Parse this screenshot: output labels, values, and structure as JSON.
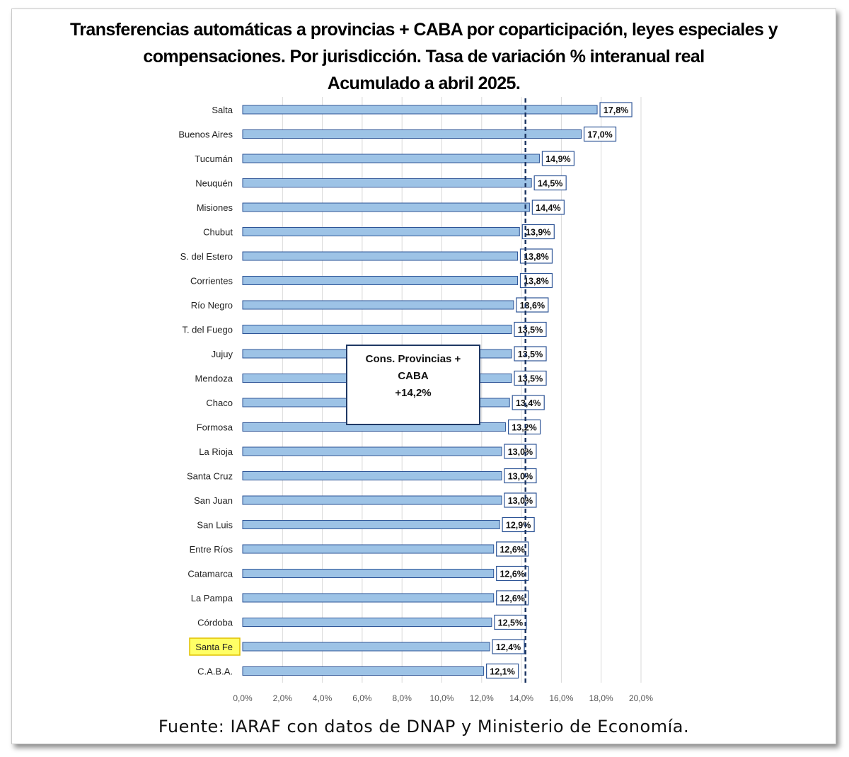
{
  "title": {
    "line1": "Transferencias automáticas a provincias + CABA por coparticipación, leyes especiales y",
    "line2": "compensaciones. Por jurisdicción. Tasa de variación % interanual real",
    "line3": "Acumulado a abril 2025."
  },
  "source": "Fuente: IARAF con datos de DNAP y Ministerio de Economía.",
  "colors": {
    "bar_fill": "#9dc3e6",
    "bar_stroke": "#2e5597",
    "reference_line": "#1f3864",
    "highlight_fill": "#ffff66",
    "highlight_stroke": "#e0c000"
  },
  "chart_data": {
    "type": "bar",
    "orientation": "horizontal",
    "categories": [
      "Salta",
      "Buenos Aires",
      "Tucumán",
      "Neuquén",
      "Misiones",
      "Chubut",
      "S. del Estero",
      "Corrientes",
      "Río Negro",
      "T. del Fuego",
      "Jujuy",
      "Mendoza",
      "Chaco",
      "Formosa",
      "La Rioja",
      "Santa Cruz",
      "San Juan",
      "San Luis",
      "Entre Ríos",
      "Catamarca",
      "La Pampa",
      "Córdoba",
      "Santa Fe",
      "C.A.B.A."
    ],
    "values": [
      17.8,
      17.0,
      14.9,
      14.5,
      14.4,
      13.9,
      13.8,
      13.8,
      13.6,
      13.5,
      13.5,
      13.5,
      13.4,
      13.2,
      13.0,
      13.0,
      13.0,
      12.9,
      12.6,
      12.6,
      12.6,
      12.5,
      12.4,
      12.1
    ],
    "data_labels": [
      "17,8%",
      "17,0%",
      "14,9%",
      "14,5%",
      "14,4%",
      "13,9%",
      "13,8%",
      "13,8%",
      "13,6%",
      "13,5%",
      "13,5%",
      "13,5%",
      "13,4%",
      "13,2%",
      "13,0%",
      "13,0%",
      "13,0%",
      "12,9%",
      "12,6%",
      "12,6%",
      "12,6%",
      "12,5%",
      "12,4%",
      "12,1%"
    ],
    "xlim": [
      0,
      20
    ],
    "x_ticks": [
      0,
      2,
      4,
      6,
      8,
      10,
      12,
      14,
      16,
      18,
      20
    ],
    "x_tick_labels": [
      "0,0%",
      "2,0%",
      "4,0%",
      "6,0%",
      "8,0%",
      "10,0%",
      "12,0%",
      "14,0%",
      "16,0%",
      "18,0%",
      "20,0%"
    ],
    "grid": "vertical",
    "highlighted_category": "Santa Fe",
    "reference_line": {
      "value": 14.2,
      "style": "dashed"
    },
    "annotation": {
      "lines": [
        "Cons. Provincias +",
        "CABA",
        "+14,2%"
      ]
    }
  }
}
